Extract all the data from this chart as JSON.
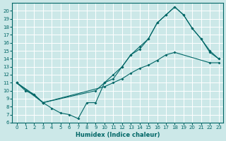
{
  "xlabel": "Humidex (Indice chaleur)",
  "bg_color": "#cce8e8",
  "grid_color": "#ffffff",
  "line_color": "#006666",
  "xlim": [
    -0.5,
    23.5
  ],
  "ylim": [
    6,
    21
  ],
  "xticks": [
    0,
    1,
    2,
    3,
    4,
    5,
    6,
    7,
    8,
    9,
    10,
    11,
    12,
    13,
    14,
    15,
    16,
    17,
    18,
    19,
    20,
    21,
    22,
    23
  ],
  "yticks": [
    6,
    7,
    8,
    9,
    10,
    11,
    12,
    13,
    14,
    15,
    16,
    17,
    18,
    19,
    20
  ],
  "line1_x": [
    0,
    1,
    2,
    3,
    4,
    5,
    6,
    7,
    8,
    9,
    10,
    11,
    12,
    13,
    14,
    15,
    16,
    17,
    18,
    19,
    20,
    21,
    22,
    23
  ],
  "line1_y": [
    11.0,
    10.0,
    9.5,
    8.5,
    7.8,
    7.2,
    7.0,
    6.5,
    8.5,
    8.5,
    11.0,
    11.5,
    13.0,
    14.5,
    15.2,
    16.5,
    18.5,
    19.5,
    20.5,
    19.5,
    17.8,
    16.5,
    15.0,
    14.0
  ],
  "line2_x": [
    0,
    3,
    9,
    10,
    11,
    12,
    13,
    14,
    15,
    16,
    17,
    18,
    19,
    20,
    21,
    22,
    23
  ],
  "line2_y": [
    11.0,
    8.5,
    10.0,
    11.0,
    12.0,
    13.0,
    14.5,
    15.5,
    16.5,
    18.5,
    19.5,
    20.5,
    19.5,
    17.8,
    16.5,
    14.8,
    14.0
  ],
  "line3_x": [
    0,
    2,
    3,
    10,
    11,
    12,
    13,
    14,
    15,
    16,
    17,
    18,
    22,
    23
  ],
  "line3_y": [
    11.0,
    9.5,
    8.5,
    10.5,
    11.0,
    11.5,
    12.2,
    12.8,
    13.2,
    13.8,
    14.5,
    14.8,
    13.5,
    13.5
  ]
}
